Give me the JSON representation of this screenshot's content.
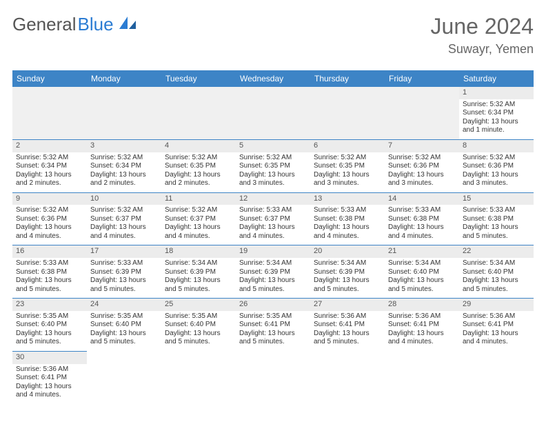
{
  "logo": {
    "text1": "General",
    "text2": "Blue"
  },
  "title": "June 2024",
  "location": "Suwayr, Yemen",
  "colors": {
    "header_bg": "#3d84c6",
    "header_text": "#ffffff",
    "rule": "#3d84c6",
    "daynum_bg": "#ececec",
    "logo_blue": "#2b7cd3",
    "text": "#333333"
  },
  "weekdays": [
    "Sunday",
    "Monday",
    "Tuesday",
    "Wednesday",
    "Thursday",
    "Friday",
    "Saturday"
  ],
  "weeks": [
    [
      null,
      null,
      null,
      null,
      null,
      null,
      {
        "n": "1",
        "sr": "Sunrise: 5:32 AM",
        "ss": "Sunset: 6:34 PM",
        "dl1": "Daylight: 13 hours",
        "dl2": "and 1 minute."
      }
    ],
    [
      {
        "n": "2",
        "sr": "Sunrise: 5:32 AM",
        "ss": "Sunset: 6:34 PM",
        "dl1": "Daylight: 13 hours",
        "dl2": "and 2 minutes."
      },
      {
        "n": "3",
        "sr": "Sunrise: 5:32 AM",
        "ss": "Sunset: 6:34 PM",
        "dl1": "Daylight: 13 hours",
        "dl2": "and 2 minutes."
      },
      {
        "n": "4",
        "sr": "Sunrise: 5:32 AM",
        "ss": "Sunset: 6:35 PM",
        "dl1": "Daylight: 13 hours",
        "dl2": "and 2 minutes."
      },
      {
        "n": "5",
        "sr": "Sunrise: 5:32 AM",
        "ss": "Sunset: 6:35 PM",
        "dl1": "Daylight: 13 hours",
        "dl2": "and 3 minutes."
      },
      {
        "n": "6",
        "sr": "Sunrise: 5:32 AM",
        "ss": "Sunset: 6:35 PM",
        "dl1": "Daylight: 13 hours",
        "dl2": "and 3 minutes."
      },
      {
        "n": "7",
        "sr": "Sunrise: 5:32 AM",
        "ss": "Sunset: 6:36 PM",
        "dl1": "Daylight: 13 hours",
        "dl2": "and 3 minutes."
      },
      {
        "n": "8",
        "sr": "Sunrise: 5:32 AM",
        "ss": "Sunset: 6:36 PM",
        "dl1": "Daylight: 13 hours",
        "dl2": "and 3 minutes."
      }
    ],
    [
      {
        "n": "9",
        "sr": "Sunrise: 5:32 AM",
        "ss": "Sunset: 6:36 PM",
        "dl1": "Daylight: 13 hours",
        "dl2": "and 4 minutes."
      },
      {
        "n": "10",
        "sr": "Sunrise: 5:32 AM",
        "ss": "Sunset: 6:37 PM",
        "dl1": "Daylight: 13 hours",
        "dl2": "and 4 minutes."
      },
      {
        "n": "11",
        "sr": "Sunrise: 5:32 AM",
        "ss": "Sunset: 6:37 PM",
        "dl1": "Daylight: 13 hours",
        "dl2": "and 4 minutes."
      },
      {
        "n": "12",
        "sr": "Sunrise: 5:33 AM",
        "ss": "Sunset: 6:37 PM",
        "dl1": "Daylight: 13 hours",
        "dl2": "and 4 minutes."
      },
      {
        "n": "13",
        "sr": "Sunrise: 5:33 AM",
        "ss": "Sunset: 6:38 PM",
        "dl1": "Daylight: 13 hours",
        "dl2": "and 4 minutes."
      },
      {
        "n": "14",
        "sr": "Sunrise: 5:33 AM",
        "ss": "Sunset: 6:38 PM",
        "dl1": "Daylight: 13 hours",
        "dl2": "and 4 minutes."
      },
      {
        "n": "15",
        "sr": "Sunrise: 5:33 AM",
        "ss": "Sunset: 6:38 PM",
        "dl1": "Daylight: 13 hours",
        "dl2": "and 5 minutes."
      }
    ],
    [
      {
        "n": "16",
        "sr": "Sunrise: 5:33 AM",
        "ss": "Sunset: 6:38 PM",
        "dl1": "Daylight: 13 hours",
        "dl2": "and 5 minutes."
      },
      {
        "n": "17",
        "sr": "Sunrise: 5:33 AM",
        "ss": "Sunset: 6:39 PM",
        "dl1": "Daylight: 13 hours",
        "dl2": "and 5 minutes."
      },
      {
        "n": "18",
        "sr": "Sunrise: 5:34 AM",
        "ss": "Sunset: 6:39 PM",
        "dl1": "Daylight: 13 hours",
        "dl2": "and 5 minutes."
      },
      {
        "n": "19",
        "sr": "Sunrise: 5:34 AM",
        "ss": "Sunset: 6:39 PM",
        "dl1": "Daylight: 13 hours",
        "dl2": "and 5 minutes."
      },
      {
        "n": "20",
        "sr": "Sunrise: 5:34 AM",
        "ss": "Sunset: 6:39 PM",
        "dl1": "Daylight: 13 hours",
        "dl2": "and 5 minutes."
      },
      {
        "n": "21",
        "sr": "Sunrise: 5:34 AM",
        "ss": "Sunset: 6:40 PM",
        "dl1": "Daylight: 13 hours",
        "dl2": "and 5 minutes."
      },
      {
        "n": "22",
        "sr": "Sunrise: 5:34 AM",
        "ss": "Sunset: 6:40 PM",
        "dl1": "Daylight: 13 hours",
        "dl2": "and 5 minutes."
      }
    ],
    [
      {
        "n": "23",
        "sr": "Sunrise: 5:35 AM",
        "ss": "Sunset: 6:40 PM",
        "dl1": "Daylight: 13 hours",
        "dl2": "and 5 minutes."
      },
      {
        "n": "24",
        "sr": "Sunrise: 5:35 AM",
        "ss": "Sunset: 6:40 PM",
        "dl1": "Daylight: 13 hours",
        "dl2": "and 5 minutes."
      },
      {
        "n": "25",
        "sr": "Sunrise: 5:35 AM",
        "ss": "Sunset: 6:40 PM",
        "dl1": "Daylight: 13 hours",
        "dl2": "and 5 minutes."
      },
      {
        "n": "26",
        "sr": "Sunrise: 5:35 AM",
        "ss": "Sunset: 6:41 PM",
        "dl1": "Daylight: 13 hours",
        "dl2": "and 5 minutes."
      },
      {
        "n": "27",
        "sr": "Sunrise: 5:36 AM",
        "ss": "Sunset: 6:41 PM",
        "dl1": "Daylight: 13 hours",
        "dl2": "and 5 minutes."
      },
      {
        "n": "28",
        "sr": "Sunrise: 5:36 AM",
        "ss": "Sunset: 6:41 PM",
        "dl1": "Daylight: 13 hours",
        "dl2": "and 4 minutes."
      },
      {
        "n": "29",
        "sr": "Sunrise: 5:36 AM",
        "ss": "Sunset: 6:41 PM",
        "dl1": "Daylight: 13 hours",
        "dl2": "and 4 minutes."
      }
    ],
    [
      {
        "n": "30",
        "sr": "Sunrise: 5:36 AM",
        "ss": "Sunset: 6:41 PM",
        "dl1": "Daylight: 13 hours",
        "dl2": "and 4 minutes."
      },
      null,
      null,
      null,
      null,
      null,
      null
    ]
  ]
}
